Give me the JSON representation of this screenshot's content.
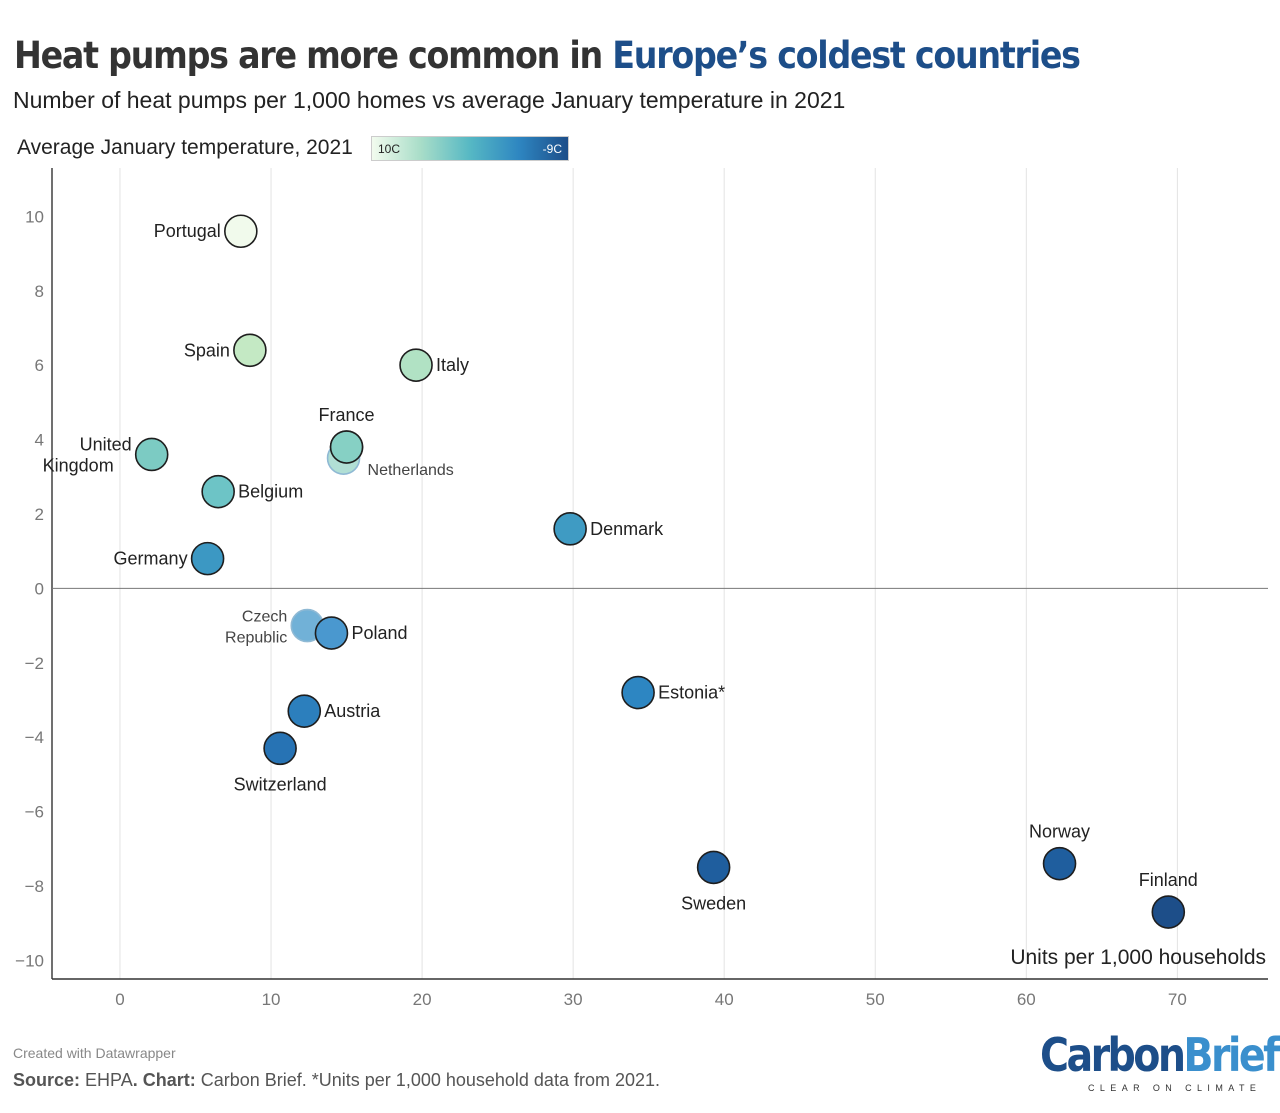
{
  "title": {
    "prefix": "Heat pumps are more common in ",
    "highlight": "Europe’s coldest countries"
  },
  "subtitle": "Number of heat pumps per 1,000 homes vs average January temperature in 2021",
  "legend": {
    "label": "Average January temperature, 2021",
    "min_label": "10C",
    "max_label": "-9C"
  },
  "colors": {
    "highlight": "#1d4e89",
    "scale": [
      "#f2fbee",
      "#a8ddc8",
      "#56b8c4",
      "#2e86c1",
      "#1d4e89"
    ]
  },
  "chart_data": {
    "type": "scatter",
    "xlabel": "Units per 1,000 households",
    "ylabel": "",
    "xlim": [
      -4.5,
      76
    ],
    "ylim": [
      -10.5,
      11.3
    ],
    "x_ticks": [
      0,
      10,
      20,
      30,
      40,
      50,
      60,
      70
    ],
    "y_ticks": [
      10,
      8,
      6,
      4,
      2,
      0,
      -2,
      -4,
      -6,
      -8,
      -10
    ],
    "grid": "vertical",
    "color_by": "y",
    "points": [
      {
        "label": "Portugal",
        "x": 8,
        "y": 9.6,
        "label_pos": "left",
        "color": "#f1faec"
      },
      {
        "label": "Spain",
        "x": 8.6,
        "y": 6.4,
        "label_pos": "left",
        "color": "#c4e9c4"
      },
      {
        "label": "Italy",
        "x": 19.6,
        "y": 6.0,
        "label_pos": "right",
        "color": "#b1e2c4"
      },
      {
        "label": "France",
        "x": 15,
        "y": 3.8,
        "label_pos": "top",
        "color": "#86d0c4"
      },
      {
        "label": "Netherlands",
        "x": 14.8,
        "y": 3.5,
        "label_pos": "below-right",
        "color": "#a8dcd0"
      },
      {
        "label": "United Kingdom",
        "x": 2.1,
        "y": 3.6,
        "label_pos": "left",
        "color": "#7ccbc3"
      },
      {
        "label": "Belgium",
        "x": 6.5,
        "y": 2.6,
        "label_pos": "right",
        "color": "#6dc4c6"
      },
      {
        "label": "Denmark",
        "x": 29.8,
        "y": 1.6,
        "label_pos": "right",
        "color": "#3f9bc3"
      },
      {
        "label": "Germany",
        "x": 5.8,
        "y": 0.8,
        "label_pos": "left",
        "color": "#3c98c3"
      },
      {
        "label": "Czech Republic",
        "x": 12.4,
        "y": -1.0,
        "label_pos": "left",
        "color": "#62a9d3"
      },
      {
        "label": "Poland",
        "x": 14,
        "y": -1.2,
        "label_pos": "right",
        "color": "#4a98cf"
      },
      {
        "label": "Estonia*",
        "x": 34.3,
        "y": -2.8,
        "label_pos": "right",
        "color": "#2d86c2"
      },
      {
        "label": "Austria",
        "x": 12.2,
        "y": -3.3,
        "label_pos": "right",
        "color": "#2c7fbd"
      },
      {
        "label": "Switzerland",
        "x": 10.6,
        "y": -4.3,
        "label_pos": "bottom",
        "color": "#2773b4"
      },
      {
        "label": "Sweden",
        "x": 39.3,
        "y": -7.5,
        "label_pos": "bottom",
        "color": "#1f5e9e"
      },
      {
        "label": "Norway",
        "x": 62.2,
        "y": -7.4,
        "label_pos": "top",
        "color": "#1f5e9e"
      },
      {
        "label": "Finland",
        "x": 69.4,
        "y": -8.7,
        "label_pos": "top",
        "color": "#1d4e89"
      }
    ]
  },
  "footer": {
    "created": "Created with Datawrapper",
    "source_label": "Source:",
    "source_text": " EHPA",
    "chart_label": ". Chart:",
    "chart_text": " Carbon Brief. *Units per 1,000 household data from 2021."
  },
  "logo": {
    "carbon": "Carbon",
    "brief": "Brief",
    "tagline": "CLEAR ON CLIMATE"
  }
}
